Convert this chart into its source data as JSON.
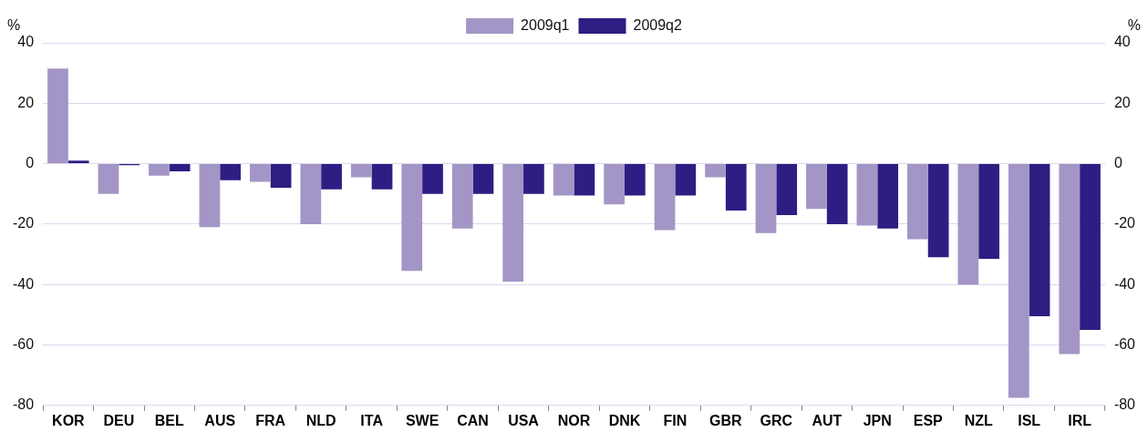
{
  "chart_data": {
    "type": "bar",
    "ylabel": "%",
    "y2label": "%",
    "categories": [
      "KOR",
      "DEU",
      "BEL",
      "AUS",
      "FRA",
      "NLD",
      "ITA",
      "SWE",
      "CAN",
      "USA",
      "NOR",
      "DNK",
      "FIN",
      "GBR",
      "GRC",
      "AUT",
      "JPN",
      "ESP",
      "NZL",
      "ISL",
      "IRL"
    ],
    "series": [
      {
        "name": "2009q1",
        "color": "#a396c6",
        "values": [
          31.5,
          -10,
          -4,
          -21,
          -6,
          -20,
          -4.5,
          -35.5,
          -21.5,
          -39,
          -10.5,
          -13.5,
          -22,
          -4.5,
          -23,
          -15,
          -20.5,
          -25,
          -40,
          -77.5,
          -63
        ]
      },
      {
        "name": "2009q2",
        "color": "#2e1e83",
        "values": [
          1,
          -0.5,
          -2.5,
          -5.5,
          -8,
          -8.5,
          -8.5,
          -10,
          -10,
          -10,
          -10.5,
          -10.5,
          -10.5,
          -15.5,
          -17,
          -20,
          -21.5,
          -31,
          -31.5,
          -50.5,
          -55
        ]
      }
    ],
    "ylim": [
      -80,
      40
    ],
    "yticks": [
      -80,
      -60,
      -40,
      -20,
      0,
      20,
      40
    ],
    "y2lim": [
      -80,
      40
    ],
    "y2ticks": [
      -80,
      -60,
      -40,
      -20,
      0,
      20,
      40
    ],
    "grid": "y",
    "legend": "top"
  }
}
